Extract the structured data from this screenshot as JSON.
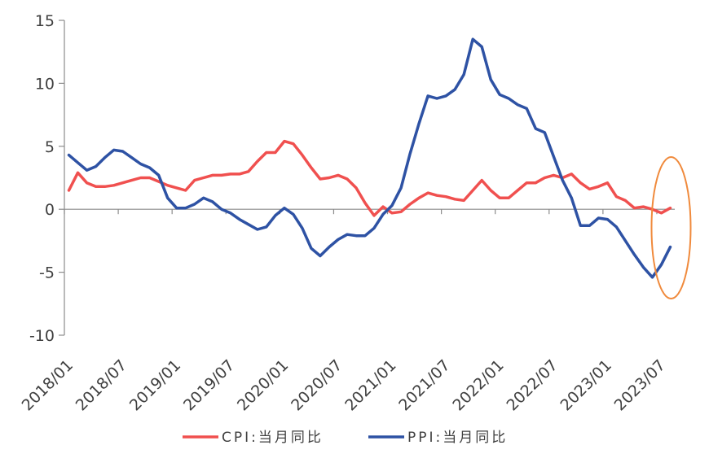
{
  "chart_data": {
    "type": "line",
    "title": "",
    "xlabel": "",
    "ylabel": "",
    "ylim": [
      -10,
      15
    ],
    "yticks": [
      -10,
      -5,
      0,
      5,
      10,
      15
    ],
    "x_tick_labels": [
      "2018/01",
      "2018/07",
      "2019/01",
      "2019/07",
      "2020/01",
      "2020/07",
      "2021/01",
      "2021/07",
      "2022/01",
      "2022/07",
      "2023/01",
      "2023/07"
    ],
    "x": [
      "2018/01",
      "2018/02",
      "2018/03",
      "2018/04",
      "2018/05",
      "2018/06",
      "2018/07",
      "2018/08",
      "2018/09",
      "2018/10",
      "2018/11",
      "2018/12",
      "2019/01",
      "2019/02",
      "2019/03",
      "2019/04",
      "2019/05",
      "2019/06",
      "2019/07",
      "2019/08",
      "2019/09",
      "2019/10",
      "2019/11",
      "2019/12",
      "2020/01",
      "2020/02",
      "2020/03",
      "2020/04",
      "2020/05",
      "2020/06",
      "2020/07",
      "2020/08",
      "2020/09",
      "2020/10",
      "2020/11",
      "2020/12",
      "2021/01",
      "2021/02",
      "2021/03",
      "2021/04",
      "2021/05",
      "2021/06",
      "2021/07",
      "2021/08",
      "2021/09",
      "2021/10",
      "2021/11",
      "2021/12",
      "2022/01",
      "2022/02",
      "2022/03",
      "2022/04",
      "2022/05",
      "2022/06",
      "2022/07",
      "2022/08",
      "2022/09",
      "2022/10",
      "2022/11",
      "2022/12",
      "2023/01",
      "2023/02",
      "2023/03",
      "2023/04",
      "2023/05",
      "2023/06",
      "2023/07",
      "2023/08"
    ],
    "grid": false,
    "legend_position": "bottom",
    "series": [
      {
        "name": "CPI:当月同比",
        "color": "#f0504f",
        "values": [
          1.5,
          2.9,
          2.1,
          1.8,
          1.8,
          1.9,
          2.1,
          2.3,
          2.5,
          2.5,
          2.2,
          1.9,
          1.7,
          1.5,
          2.3,
          2.5,
          2.7,
          2.7,
          2.8,
          2.8,
          3.0,
          3.8,
          4.5,
          4.5,
          5.4,
          5.2,
          4.3,
          3.3,
          2.4,
          2.5,
          2.7,
          2.4,
          1.7,
          0.5,
          -0.5,
          0.2,
          -0.3,
          -0.2,
          0.4,
          0.9,
          1.3,
          1.1,
          1.0,
          0.8,
          0.7,
          1.5,
          2.3,
          1.5,
          0.9,
          0.9,
          1.5,
          2.1,
          2.1,
          2.5,
          2.7,
          2.5,
          2.8,
          2.1,
          1.6,
          1.8,
          2.1,
          1.0,
          0.7,
          0.1,
          0.2,
          0.0,
          -0.3,
          0.1
        ]
      },
      {
        "name": "PPI:当月同比",
        "color": "#2e52a4",
        "values": [
          4.3,
          3.7,
          3.1,
          3.4,
          4.1,
          4.7,
          4.6,
          4.1,
          3.6,
          3.3,
          2.7,
          0.9,
          0.1,
          0.1,
          0.4,
          0.9,
          0.6,
          0.0,
          -0.3,
          -0.8,
          -1.2,
          -1.6,
          -1.4,
          -0.5,
          0.1,
          -0.4,
          -1.5,
          -3.1,
          -3.7,
          -3.0,
          -2.4,
          -2.0,
          -2.1,
          -2.1,
          -1.5,
          -0.4,
          0.3,
          1.7,
          4.4,
          6.8,
          9.0,
          8.8,
          9.0,
          9.5,
          10.7,
          13.5,
          12.9,
          10.3,
          9.1,
          8.8,
          8.3,
          8.0,
          6.4,
          6.1,
          4.2,
          2.3,
          0.9,
          -1.3,
          -1.3,
          -0.7,
          -0.8,
          -1.4,
          -2.5,
          -3.6,
          -4.6,
          -5.4,
          -4.4,
          -3.0
        ]
      }
    ],
    "annotation": {
      "shape": "ellipse",
      "color": "#f08a3c",
      "around": "2023/08"
    }
  }
}
